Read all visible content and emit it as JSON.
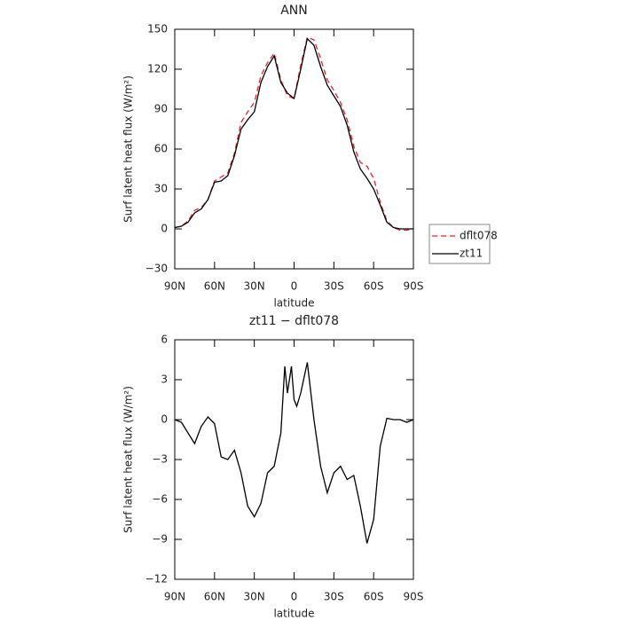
{
  "chart_data": [
    {
      "type": "line",
      "title": "ANN",
      "xlabel": "latitude",
      "ylabel": "Surf latent heat flux (W/m²)",
      "x": [
        90,
        85,
        80,
        75,
        70,
        65,
        60,
        55,
        50,
        45,
        40,
        35,
        30,
        25,
        20,
        15,
        10,
        5,
        0,
        -5,
        -10,
        -15,
        -20,
        -25,
        -30,
        -35,
        -40,
        -45,
        -50,
        -55,
        -60,
        -65,
        -70,
        -75,
        -80,
        -85,
        -90
      ],
      "series": [
        {
          "name": "dflt078",
          "color": "#e8222a",
          "dash": true,
          "values": [
            1,
            2,
            6,
            14,
            16,
            22,
            36,
            39,
            42,
            57,
            80,
            88,
            95,
            115,
            125,
            132,
            112,
            100,
            98,
            123,
            144,
            142,
            128,
            112,
            104,
            95,
            82,
            62,
            50,
            47,
            38,
            20,
            6,
            1,
            -1,
            -1,
            0
          ]
        },
        {
          "name": "zt11",
          "color": "#000000",
          "dash": false,
          "values": [
            1,
            2,
            5,
            12,
            15,
            22,
            35,
            36,
            40,
            55,
            75,
            82,
            88,
            110,
            122,
            130,
            110,
            102,
            98,
            120,
            143,
            138,
            122,
            108,
            100,
            92,
            78,
            58,
            45,
            38,
            30,
            18,
            5,
            1,
            0,
            0,
            0
          ]
        }
      ],
      "xlim": [
        90,
        -90
      ],
      "xticks": [
        {
          "value": 90,
          "label": "90N"
        },
        {
          "value": 60,
          "label": "60N"
        },
        {
          "value": 30,
          "label": "30N"
        },
        0,
        {
          "value": -30,
          "label": "30S"
        },
        {
          "value": -60,
          "label": "60S"
        },
        {
          "value": -90,
          "label": "90S"
        }
      ],
      "ylim": [
        -30,
        150
      ],
      "yticks": [
        {
          "value": -30,
          "label": "−30"
        },
        0,
        30,
        60,
        90,
        120,
        150
      ],
      "legend": "right"
    },
    {
      "type": "line",
      "title": "zt11 − dflt078",
      "xlabel": "latitude",
      "ylabel": "Surf latent heat flux (W/m²)",
      "x": [
        90,
        85,
        80,
        75,
        70,
        65,
        60,
        55,
        50,
        45,
        40,
        35,
        30,
        25,
        20,
        15,
        10,
        7,
        5,
        2,
        0,
        -2,
        -5,
        -10,
        -15,
        -20,
        -25,
        -30,
        -35,
        -40,
        -45,
        -50,
        -55,
        -60,
        -65,
        -70,
        -75,
        -80,
        -85,
        -90
      ],
      "series": [
        {
          "color": "#000000",
          "dash": false,
          "values": [
            0,
            -0.2,
            -1,
            -1.8,
            -0.5,
            0.2,
            -0.3,
            -2.8,
            -3,
            -2.3,
            -4,
            -6.5,
            -7.3,
            -6.3,
            -4,
            -3.5,
            -1,
            4,
            2,
            4,
            1.5,
            1,
            2,
            4.3,
            0,
            -3.5,
            -5.5,
            -4,
            -3.5,
            -4.5,
            -4.2,
            -6.5,
            -9.3,
            -7.5,
            -2,
            0.1,
            0,
            0,
            -0.2,
            0
          ]
        }
      ],
      "xlim": [
        90,
        -90
      ],
      "xticks": [
        {
          "value": 90,
          "label": "90N"
        },
        {
          "value": 60,
          "label": "60N"
        },
        {
          "value": 30,
          "label": "30N"
        },
        0,
        {
          "value": -30,
          "label": "30S"
        },
        {
          "value": -60,
          "label": "60S"
        },
        {
          "value": -90,
          "label": "90S"
        }
      ],
      "ylim": [
        -12,
        6
      ],
      "yticks": [
        {
          "value": -12,
          "label": "−12"
        },
        {
          "value": -9,
          "label": "−9"
        },
        {
          "value": -6,
          "label": "−6"
        },
        {
          "value": -3,
          "label": "−3"
        },
        0,
        3,
        6
      ]
    }
  ]
}
